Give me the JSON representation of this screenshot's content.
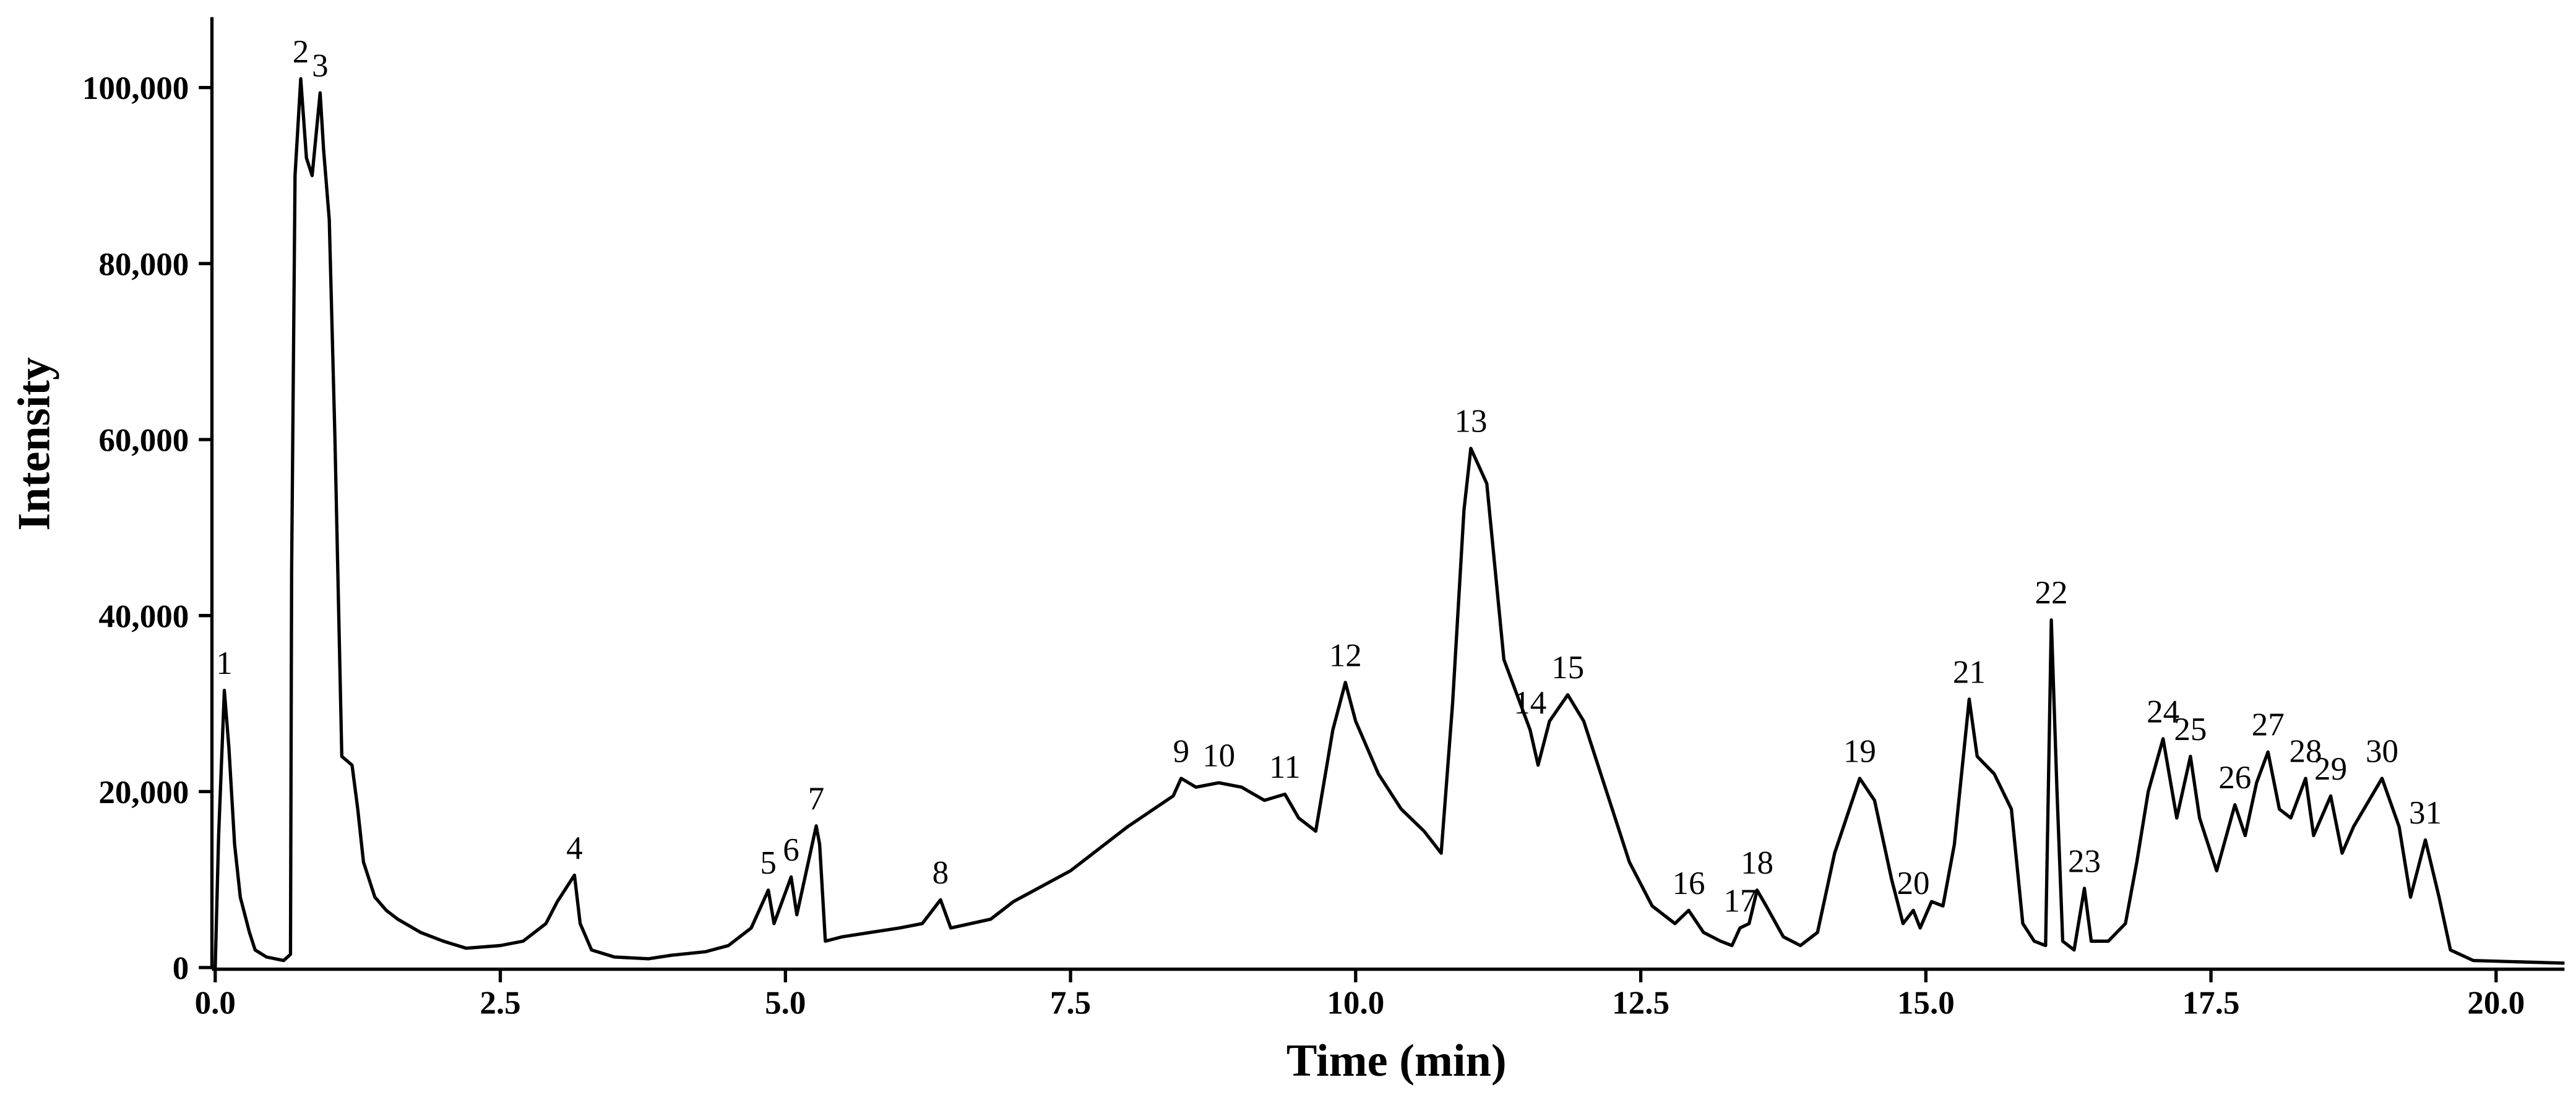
{
  "chart_data": {
    "type": "line",
    "x_label": "Time (min)",
    "y_label": "Intensity",
    "color": "#000000",
    "xlim": [
      0,
      20.6
    ],
    "ylim": [
      0,
      108000
    ],
    "xticks": [
      {
        "value": 0,
        "label": "0.0"
      },
      {
        "value": 2.5,
        "label": "2.5"
      },
      {
        "value": 5,
        "label": "5.0"
      },
      {
        "value": 7.5,
        "label": "7.5"
      },
      {
        "value": 10,
        "label": "10.0"
      },
      {
        "value": 12.5,
        "label": "12.5"
      },
      {
        "value": 15,
        "label": "15.0"
      },
      {
        "value": 17.5,
        "label": "17.5"
      },
      {
        "value": 20,
        "label": "20.0"
      }
    ],
    "yticks": [
      0,
      {
        "value": 20000,
        "label": "20,000"
      },
      {
        "value": 40000,
        "label": "40,000"
      },
      {
        "value": 60000,
        "label": "60,000"
      },
      {
        "value": 80000,
        "label": "80,000"
      },
      {
        "value": 100000,
        "label": "100,000"
      }
    ],
    "x": [
      0,
      0.03,
      0.08,
      0.12,
      0.17,
      0.22,
      0.3,
      0.35,
      0.45,
      0.6,
      0.66,
      0.67,
      0.7,
      0.75,
      0.8,
      0.85,
      0.92,
      0.95,
      1.0,
      1.05,
      1.11,
      1.2,
      1.25,
      1.3,
      1.4,
      1.5,
      1.6,
      1.8,
      2.0,
      2.2,
      2.5,
      2.7,
      2.9,
      3.0,
      3.15,
      3.2,
      3.3,
      3.5,
      3.8,
      4.0,
      4.3,
      4.5,
      4.7,
      4.85,
      4.9,
      5.05,
      5.1,
      5.27,
      5.3,
      5.35,
      5.5,
      6.0,
      6.2,
      6.36,
      6.45,
      6.8,
      7.0,
      7.5,
      8.0,
      8.4,
      8.47,
      8.6,
      8.8,
      9.0,
      9.2,
      9.38,
      9.5,
      9.65,
      9.8,
      9.91,
      10.0,
      10.2,
      10.4,
      10.6,
      10.75,
      10.85,
      10.95,
      11.01,
      11.15,
      11.3,
      11.53,
      11.6,
      11.7,
      11.86,
      12.0,
      12.2,
      12.4,
      12.6,
      12.8,
      12.92,
      13.05,
      13.2,
      13.3,
      13.37,
      13.45,
      13.52,
      13.6,
      13.75,
      13.9,
      14.05,
      14.2,
      14.42,
      14.55,
      14.7,
      14.8,
      14.89,
      14.95,
      15.05,
      15.15,
      15.25,
      15.38,
      15.45,
      15.6,
      15.75,
      15.85,
      15.95,
      16.05,
      16.1,
      16.15,
      16.2,
      16.3,
      16.39,
      16.45,
      16.6,
      16.75,
      16.85,
      16.95,
      17.08,
      17.2,
      17.32,
      17.4,
      17.55,
      17.71,
      17.8,
      17.9,
      18.0,
      18.1,
      18.2,
      18.33,
      18.4,
      18.55,
      18.65,
      18.75,
      19.0,
      19.15,
      19.25,
      19.38,
      19.5,
      19.6,
      19.8,
      20.6
    ],
    "values": [
      0,
      15000,
      31500,
      25000,
      14000,
      8000,
      4000,
      2000,
      1200,
      800,
      1500,
      45000,
      90000,
      101000,
      92000,
      90000,
      99400,
      93000,
      85000,
      60000,
      24000,
      23000,
      18000,
      12000,
      8000,
      6500,
      5500,
      4000,
      3000,
      2200,
      2500,
      3000,
      5000,
      7500,
      10500,
      5000,
      2000,
      1200,
      1000,
      1400,
      1800,
      2500,
      4500,
      8800,
      5000,
      10300,
      6000,
      16100,
      14000,
      3000,
      3500,
      4500,
      5000,
      7700,
      4500,
      5500,
      7500,
      11000,
      16000,
      19500,
      21500,
      20500,
      21000,
      20500,
      19000,
      19700,
      17000,
      15500,
      27000,
      32400,
      28000,
      22000,
      18000,
      15500,
      13000,
      30000,
      52000,
      59000,
      55000,
      35000,
      27000,
      23000,
      28000,
      31000,
      28000,
      20000,
      12000,
      7000,
      5000,
      6500,
      4000,
      3000,
      2500,
      4500,
      5000,
      8800,
      7000,
      3500,
      2500,
      4000,
      13000,
      21500,
      19000,
      10000,
      5000,
      6500,
      4500,
      7500,
      7000,
      14000,
      30500,
      24000,
      22000,
      18000,
      5000,
      3000,
      2500,
      39500,
      20000,
      3000,
      2000,
      9000,
      3000,
      3000,
      5000,
      12000,
      20000,
      26000,
      17000,
      24000,
      17000,
      11000,
      18500,
      15000,
      21000,
      24500,
      18000,
      17000,
      21500,
      15000,
      19500,
      13000,
      16000,
      21500,
      16000,
      8000,
      14500,
      8000,
      2000,
      800,
      500
    ],
    "annotations": [
      {
        "text": "1",
        "x": 0.08,
        "y": 31500
      },
      {
        "text": "2",
        "x": 0.75,
        "y": 101000
      },
      {
        "text": "3",
        "x": 0.92,
        "y": 99400
      },
      {
        "text": "4",
        "x": 3.15,
        "y": 10500
      },
      {
        "text": "5",
        "x": 4.85,
        "y": 8800
      },
      {
        "text": "6",
        "x": 5.05,
        "y": 10300
      },
      {
        "text": "7",
        "x": 5.27,
        "y": 16100
      },
      {
        "text": "8",
        "x": 6.36,
        "y": 7700
      },
      {
        "text": "9",
        "x": 8.47,
        "y": 21500
      },
      {
        "text": "10",
        "x": 8.8,
        "y": 21000
      },
      {
        "text": "11",
        "x": 9.38,
        "y": 19700
      },
      {
        "text": "12",
        "x": 9.91,
        "y": 32400
      },
      {
        "text": "13",
        "x": 11.01,
        "y": 59000
      },
      {
        "text": "14",
        "x": 11.53,
        "y": 27000
      },
      {
        "text": "15",
        "x": 11.86,
        "y": 31000
      },
      {
        "text": "16",
        "x": 12.92,
        "y": 6500
      },
      {
        "text": "17",
        "x": 13.37,
        "y": 4500
      },
      {
        "text": "18",
        "x": 13.52,
        "y": 8800
      },
      {
        "text": "19",
        "x": 14.42,
        "y": 21500
      },
      {
        "text": "20",
        "x": 14.89,
        "y": 6500
      },
      {
        "text": "21",
        "x": 15.38,
        "y": 30500
      },
      {
        "text": "22",
        "x": 16.1,
        "y": 39500
      },
      {
        "text": "23",
        "x": 16.39,
        "y": 9000
      },
      {
        "text": "24",
        "x": 17.08,
        "y": 26000
      },
      {
        "text": "25",
        "x": 17.32,
        "y": 24000
      },
      {
        "text": "26",
        "x": 17.71,
        "y": 18500
      },
      {
        "text": "27",
        "x": 18.0,
        "y": 24500
      },
      {
        "text": "28",
        "x": 18.33,
        "y": 21500
      },
      {
        "text": "29",
        "x": 18.55,
        "y": 19500
      },
      {
        "text": "30",
        "x": 19.0,
        "y": 21500
      },
      {
        "text": "31",
        "x": 19.38,
        "y": 14500
      }
    ]
  }
}
